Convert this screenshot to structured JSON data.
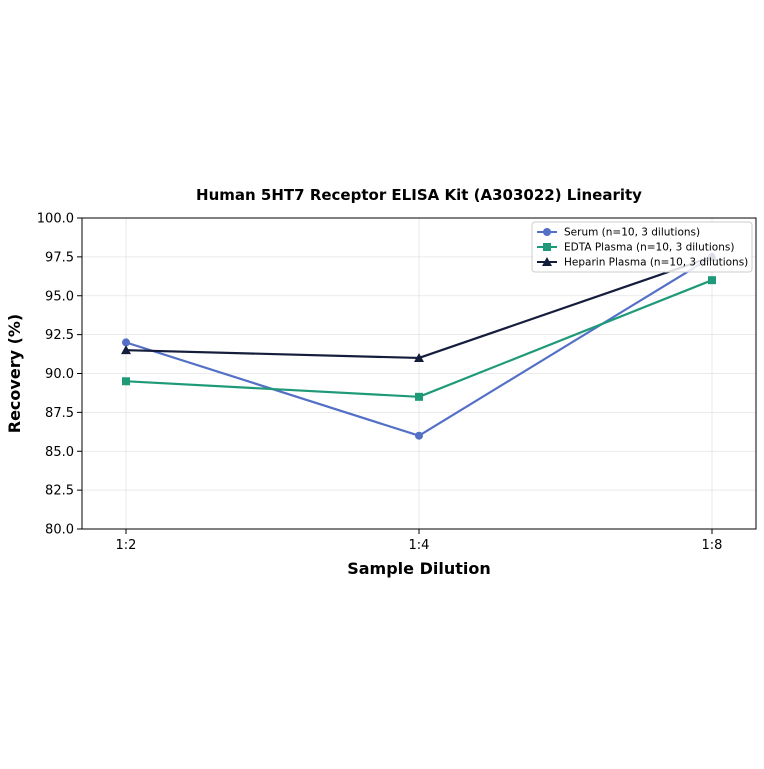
{
  "chart_data": {
    "type": "line",
    "title": "Human 5HT7 Receptor ELISA Kit (A303022) Linearity",
    "xlabel": "Sample Dilution",
    "ylabel": "Recovery (%)",
    "categories": [
      "1:2",
      "1:4",
      "1:8"
    ],
    "ylim": [
      80.0,
      100.0
    ],
    "yticks": [
      "80.0",
      "82.5",
      "85.0",
      "87.5",
      "90.0",
      "92.5",
      "95.0",
      "97.5",
      "100.0"
    ],
    "grid": true,
    "legend_position": "top-right",
    "series": [
      {
        "name": "Serum (n=10, 3 dilutions)",
        "values": [
          92.0,
          86.0,
          97.5
        ],
        "color": "#5470c6",
        "marker": "circle"
      },
      {
        "name": "EDTA Plasma (n=10, 3 dilutions)",
        "values": [
          89.5,
          88.5,
          96.0
        ],
        "color": "#1f9a78",
        "marker": "square"
      },
      {
        "name": "Heparin Plasma (n=10, 3 dilutions)",
        "values": [
          91.5,
          91.0,
          97.5
        ],
        "color": "#141d3b",
        "marker": "triangle"
      }
    ]
  }
}
